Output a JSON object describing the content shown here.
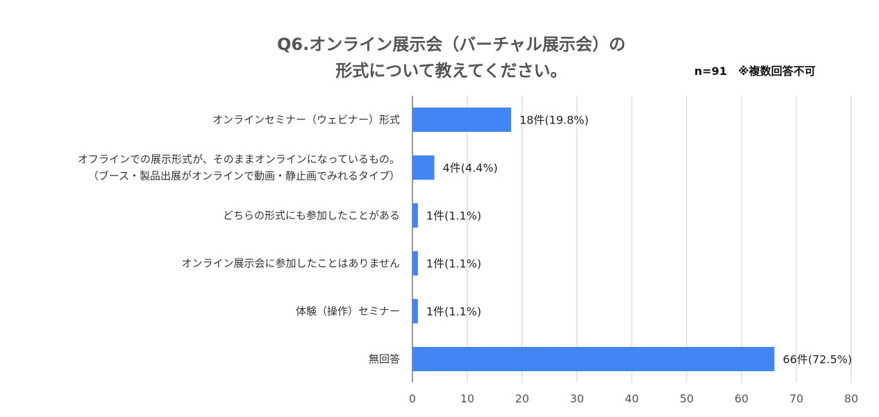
{
  "chart_data": {
    "type": "bar",
    "orientation": "horizontal",
    "title": [
      "Q6.オンライン展示会（バーチャル展示会）の",
      "形式について教えてください。"
    ],
    "note": "n=91　※複数回答不可",
    "categories": [
      [
        "オンラインセミナー（ウェビナー）形式"
      ],
      [
        "オフラインでの展示形式が、そのままオンラインになっているもの。",
        "（ブース・製品出展がオンラインで動画・静止画でみれるタイプ）"
      ],
      [
        "どちらの形式にも参加したことがある"
      ],
      [
        "オンライン展示会に参加したことはありません"
      ],
      [
        "体験（操作）セミナー"
      ],
      [
        "無回答"
      ]
    ],
    "values": [
      18,
      4,
      1,
      1,
      1,
      66
    ],
    "data_labels": [
      "18件(19.8%)",
      "4件(4.4%)",
      "1件(1.1%)",
      "1件(1.1%)",
      "1件(1.1%)",
      "66件(72.5%)"
    ],
    "xlim": [
      0,
      80
    ],
    "xticks": [
      0,
      10,
      20,
      30,
      40,
      50,
      60,
      70,
      80
    ],
    "grid": true,
    "bar_color": "#4285f4",
    "grid_color": "#cccccc"
  }
}
